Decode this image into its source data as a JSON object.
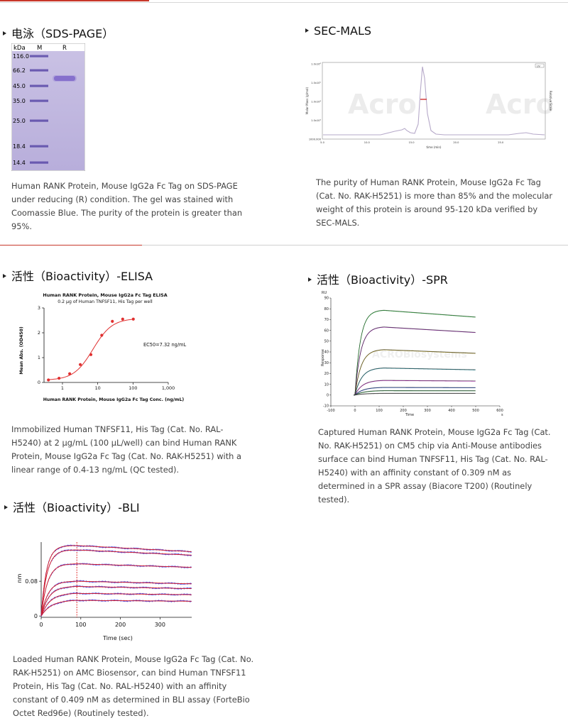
{
  "sds": {
    "title": "电泳（SDS-PAGE）",
    "lane_header": {
      "kda": "kDa",
      "m": "M",
      "r": "R"
    },
    "markers": [
      "116.0",
      "66.2",
      "45.0",
      "35.0",
      "25.0",
      "18.4",
      "14.4"
    ],
    "desc": "Human RANK Protein, Mouse IgG2a Fc Tag on SDS-PAGE under reducing (R) condition. The gel was stained with Coomassie Blue. The purity of the protein is greater than 95%."
  },
  "secmals": {
    "title": "SEC-MALS",
    "ylabel_left": "Molar Mass (g/mol)",
    "ylabel_right": "Relative Scale",
    "xlabel": "time (min)",
    "yticks": [
      "1.0x10⁶",
      "1.0x10⁵",
      "1.0x10⁴",
      "1.0x10³",
      "1000.000"
    ],
    "xticks": [
      "5.0",
      "10.0",
      "15.0",
      "20.0",
      "25.0"
    ],
    "legend": "UV",
    "watermark": "Acro",
    "desc": "The purity of Human RANK Protein, Mouse IgG2a Fc Tag (Cat. No. RAK-H5251) is more than 85% and the molecular weight of this protein is around 95-120 kDa verified by SEC-MALS."
  },
  "elisa": {
    "title": "活性（Bioactivity）-ELISA",
    "chart_data": {
      "type": "scatter",
      "title": "Human RANK Protein, Mouse IgG2a Fc Tag ELISA",
      "subtitle": "0.2 μg of Human TNFSF11, His Tag per well",
      "xlabel": "Human RANK Protein, Mouse IgG2a Fc Tag Conc. (ng/mL)",
      "ylabel": "Mean Abs. (OD450)",
      "xscale": "log",
      "xlim": [
        0.3,
        1000
      ],
      "ylim": [
        0,
        3
      ],
      "xticks": [
        "1",
        "10",
        "100",
        "1,000"
      ],
      "yticks": [
        "0",
        "1",
        "2",
        "3"
      ],
      "annotation": "EC50=7.32 ng/mL",
      "points": [
        {
          "x": 0.4,
          "y": 0.1
        },
        {
          "x": 0.8,
          "y": 0.17
        },
        {
          "x": 1.6,
          "y": 0.35
        },
        {
          "x": 3.2,
          "y": 0.72
        },
        {
          "x": 6.4,
          "y": 1.12
        },
        {
          "x": 13,
          "y": 1.9
        },
        {
          "x": 26,
          "y": 2.46
        },
        {
          "x": 51,
          "y": 2.55
        },
        {
          "x": 102,
          "y": 2.55
        }
      ],
      "fit": {
        "bottom": 0.09,
        "top": 2.58,
        "ec50": 7.32,
        "hill": 1.6
      },
      "color": "#e03030"
    },
    "desc": "Immobilized Human TNFSF11, His Tag (Cat. No. RAL-H5240) at 2 μg/mL (100 μL/well) can bind Human RANK Protein, Mouse IgG2a Fc Tag (Cat. No. RAK-H5251) with a linear range of 0.4-13 ng/mL (QC tested)."
  },
  "spr": {
    "title": "活性（Bioactivity）-SPR",
    "chart_data": {
      "type": "line",
      "ylabel": "Response",
      "ytop": "RU",
      "xlabel": "Time",
      "xunit": "s",
      "xlim": [
        -100,
        600
      ],
      "ylim": [
        -10,
        90
      ],
      "xticks": [
        "-100",
        "0",
        "100",
        "200",
        "300",
        "400",
        "500",
        "600"
      ],
      "yticks": [
        "-10",
        "0",
        "10",
        "20",
        "30",
        "40",
        "50",
        "60",
        "70",
        "80",
        "90"
      ],
      "assoc_end": 120,
      "series": [
        {
          "plateau": 78.5,
          "color": "#2e9a3b"
        },
        {
          "plateau": 63,
          "color": "#7a2a8a"
        },
        {
          "plateau": 42,
          "color": "#8a7a20"
        },
        {
          "plateau": 25,
          "color": "#1f6f7a"
        },
        {
          "plateau": 13.5,
          "color": "#9a2a9a"
        },
        {
          "plateau": 7,
          "color": "#2a4a9a"
        },
        {
          "plateau": 4,
          "color": "#2e7a3b"
        },
        {
          "plateau": 1.5,
          "color": "#555555"
        }
      ],
      "fit_color": "#222222",
      "watermark": "ACROBiosystems"
    },
    "desc": "Captured Human RANK Protein, Mouse IgG2a Fc Tag (Cat. No. RAK-H5251) on CM5 chip via Anti-Mouse antibodies surface can bind Human TNFSF11, His Tag (Cat. No. RAL-H5240) with an affinity constant of 0.309 nM as determined in a SPR assay (Biacore T200) (Routinely tested)."
  },
  "bli": {
    "title": "活性（Bioactivity）-BLI",
    "chart_data": {
      "type": "line",
      "ylabel": "nm",
      "xlabel": "Time (sec)",
      "xlim": [
        0,
        380
      ],
      "ylim": [
        -0.003,
        0.17
      ],
      "xticks": [
        "0",
        "100",
        "200",
        "300"
      ],
      "yticks": [
        "0",
        "0.08"
      ],
      "assoc_end": 90,
      "series": [
        {
          "plateau": 0.162,
          "end": 0.148
        },
        {
          "plateau": 0.152,
          "end": 0.14
        },
        {
          "plateau": 0.12,
          "end": 0.112
        },
        {
          "plateau": 0.08,
          "end": 0.074
        },
        {
          "plateau": 0.068,
          "end": 0.063
        },
        {
          "plateau": 0.052,
          "end": 0.049
        },
        {
          "plateau": 0.036,
          "end": 0.034
        }
      ],
      "raw_color": "#1e1ee0",
      "fit_color": "#e02020"
    },
    "desc": "Loaded Human RANK Protein, Mouse IgG2a Fc Tag (Cat. No. RAK-H5251) on AMC Biosensor, can bind Human TNFSF11 Protein, His Tag (Cat. No. RAL-H5240) with an affinity constant of 0.409 nM as determined in BLI assay (ForteBio Octet Red96e) (Routinely tested)."
  }
}
